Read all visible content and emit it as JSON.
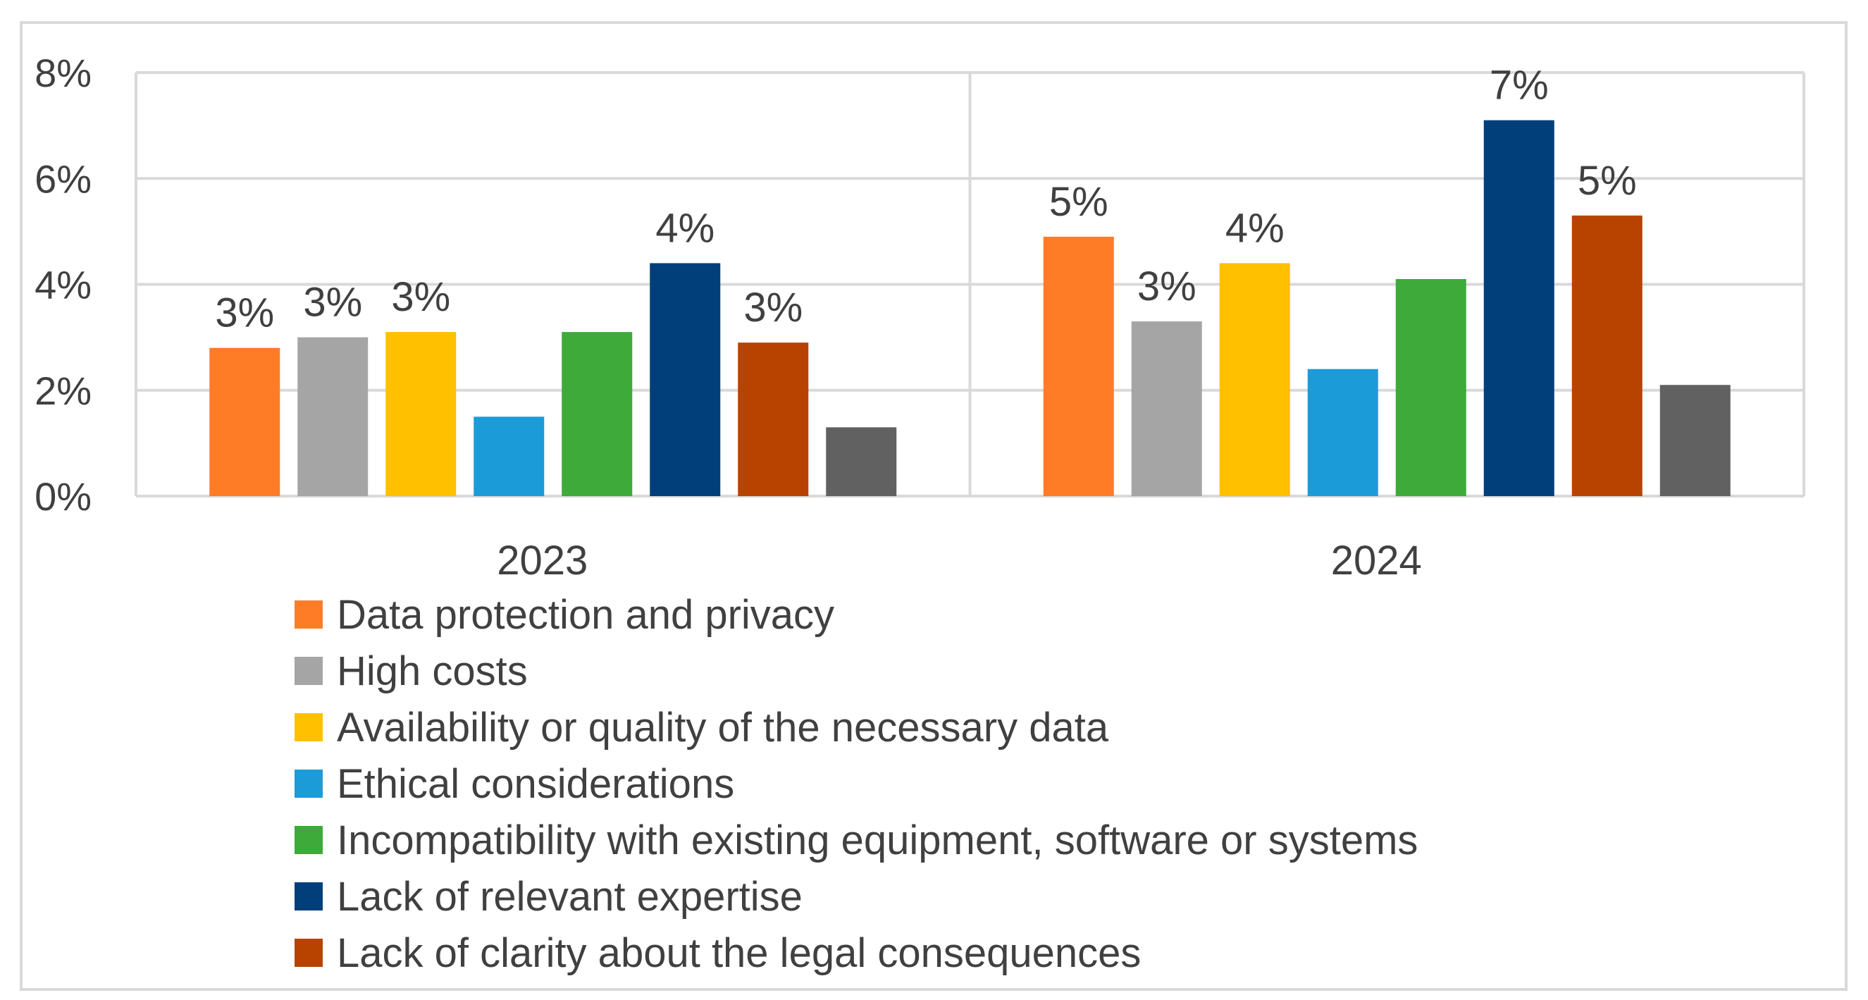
{
  "chart_data": {
    "type": "bar",
    "title": "",
    "xlabel": "",
    "ylabel": "",
    "ylim": [
      0,
      8
    ],
    "grid": true,
    "legend_position": "bottom",
    "categories": [
      "2023",
      "2024"
    ],
    "y_ticks": [
      {
        "value": 0,
        "label": "0%"
      },
      {
        "value": 2,
        "label": "2%"
      },
      {
        "value": 4,
        "label": "4%"
      },
      {
        "value": 6,
        "label": "6%"
      },
      {
        "value": 8,
        "label": "8%"
      }
    ],
    "series": [
      {
        "name": "Data protection and privacy",
        "color": "#FF7C26",
        "values": [
          2.8,
          4.9
        ],
        "labels": [
          "3%",
          "5%"
        ]
      },
      {
        "name": "High costs",
        "color": "#A5A5A5",
        "values": [
          3.0,
          3.3
        ],
        "labels": [
          "3%",
          "3%"
        ]
      },
      {
        "name": "Availability or quality of the necessary data",
        "color": "#FFC000",
        "values": [
          3.1,
          4.4
        ],
        "labels": [
          "3%",
          "4%"
        ]
      },
      {
        "name": "Ethical considerations",
        "color": "#1C9BD9",
        "values": [
          1.5,
          2.4
        ],
        "labels": [
          "",
          ""
        ]
      },
      {
        "name": "Incompatibility with existing equipment, software or systems",
        "color": "#3DAA3A",
        "values": [
          3.1,
          4.1
        ],
        "labels": [
          "",
          ""
        ]
      },
      {
        "name": "Lack of relevant expertise",
        "color": "#003F79",
        "values": [
          4.4,
          7.1
        ],
        "labels": [
          "4%",
          "7%"
        ]
      },
      {
        "name": "Lack of clarity about the legal consequences",
        "color": "#B84300",
        "values": [
          2.9,
          5.3
        ],
        "labels": [
          "3%",
          "5%"
        ]
      },
      {
        "name": "",
        "color": "#616161",
        "values": [
          1.3,
          2.1
        ],
        "labels": [
          "",
          ""
        ]
      }
    ]
  },
  "colors": {
    "gridline": "#D9D9D9",
    "frame": "#D9D9D9",
    "text": "#404040"
  }
}
